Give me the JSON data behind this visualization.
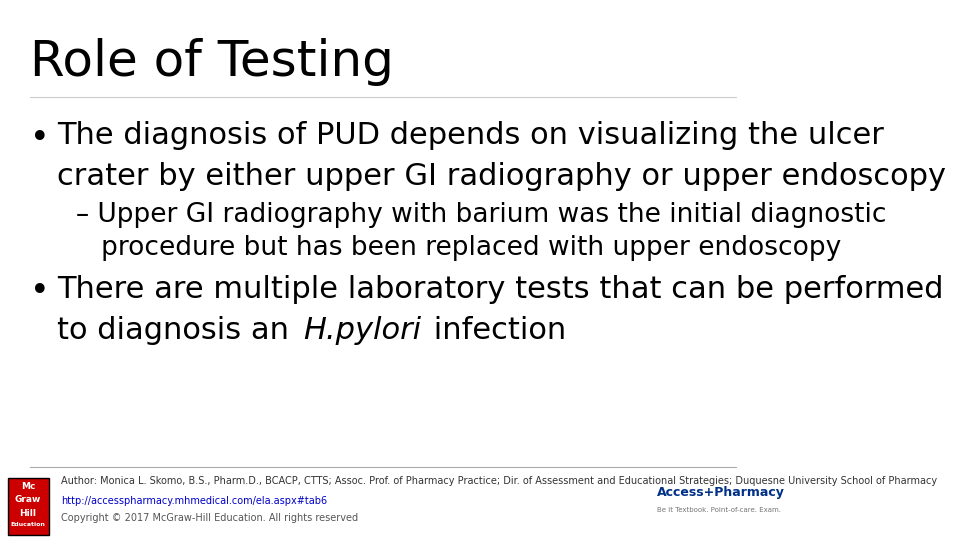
{
  "title": "Role of Testing",
  "background_color": "#ffffff",
  "title_color": "#000000",
  "title_fontsize": 36,
  "bullet1_line1": "The diagnosis of PUD depends on visualizing the ulcer",
  "bullet1_line2": "crater by either upper GI radiography or upper endoscopy",
  "subbullet_line1": "– Upper GI radiography with barium was the initial diagnostic",
  "subbullet_line2": "   procedure but has been replaced with upper endoscopy",
  "bullet2_line1": "There are multiple laboratory tests that can be performed",
  "bullet2_line2_normal1": "to diagnosis an ",
  "bullet2_line2_italic": "H.pylori",
  "bullet2_line2_normal2": " infection",
  "footer_author": "Author: Monica L. Skomo, B.S., Pharm.D., BCACP, CTTS; Assoc. Prof. of Pharmacy Practice; Dir. of Assessment and Educational Strategies; Duquesne University School of Pharmacy",
  "footer_url": "http://accesspharmacy.mhmedical.com/ela.aspx#tab6",
  "footer_copyright": "Copyright © 2017 McGraw-Hill Education. All rights reserved",
  "bullet_fontsize": 22,
  "subbullet_fontsize": 19,
  "footer_fontsize": 7,
  "logo_bg": "#cc0000",
  "access_pharmacy_color": "#003087"
}
